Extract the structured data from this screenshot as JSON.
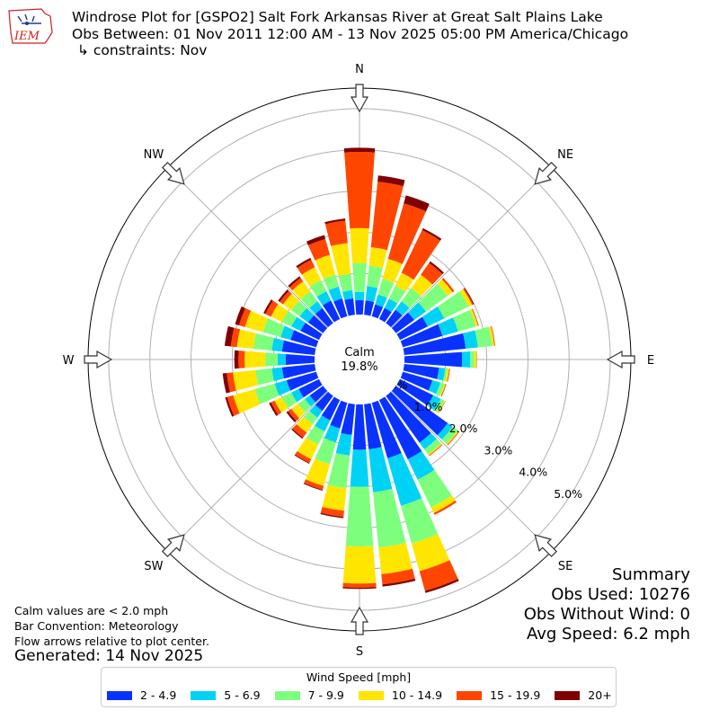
{
  "header": {
    "logo_text": "IEM",
    "title_line1": "Windrose Plot for [GSPO2] Salt Fork Arkansas River at Great Salt Plains Lake",
    "title_line2": "Obs Between: 01 Nov 2011 12:00 AM - 13 Nov 2025 05:00 PM America/Chicago",
    "title_line3": "↳ constraints: Nov"
  },
  "chart_data": {
    "type": "windrose",
    "direction_labels": [
      "N",
      "NE",
      "E",
      "SE",
      "S",
      "SW",
      "W",
      "NW"
    ],
    "calm_label": "Calm",
    "calm_value": "19.8%",
    "radial_ticks": [
      "0.0%",
      "1.0%",
      "2.0%",
      "3.0%",
      "4.0%",
      "5.0%"
    ],
    "radial_max_percent": 5.5,
    "directions_deg": [
      0,
      10,
      20,
      30,
      40,
      50,
      60,
      70,
      80,
      90,
      100,
      110,
      120,
      130,
      140,
      150,
      160,
      170,
      180,
      190,
      200,
      210,
      220,
      230,
      240,
      250,
      260,
      270,
      280,
      290,
      300,
      310,
      320,
      330,
      340,
      350
    ],
    "cumulative_percent": [
      [
        0.35,
        0.55,
        1.25,
        2.1,
        3.95,
        4.05
      ],
      [
        0.35,
        0.7,
        1.2,
        1.65,
        3.25,
        3.4
      ],
      [
        0.3,
        0.55,
        0.95,
        1.45,
        2.85,
        3.05
      ],
      [
        0.3,
        0.55,
        0.9,
        1.25,
        2.4,
        2.45
      ],
      [
        0.4,
        0.65,
        1.05,
        1.45,
        1.8,
        1.85
      ],
      [
        0.55,
        0.9,
        1.55,
        1.7,
        1.75,
        1.75
      ],
      [
        0.75,
        1.2,
        1.85,
        1.95,
        1.98,
        2.0
      ],
      [
        1.0,
        1.4,
        1.85,
        1.9,
        1.92,
        1.92
      ],
      [
        1.5,
        1.8,
        2.15,
        2.2,
        2.22,
        2.22
      ],
      [
        1.4,
        1.6,
        1.7,
        1.75,
        1.76,
        1.76
      ],
      [
        0.85,
        1.0,
        1.05,
        1.1,
        1.12,
        1.12
      ],
      [
        0.75,
        0.95,
        1.05,
        1.08,
        1.1,
        1.1
      ],
      [
        0.9,
        1.1,
        1.2,
        1.22,
        1.23,
        1.23
      ],
      [
        1.55,
        1.7,
        1.85,
        1.88,
        1.9,
        1.9
      ],
      [
        1.4,
        1.6,
        1.75,
        1.78,
        1.8,
        1.8
      ],
      [
        1.6,
        2.15,
        2.9,
        3.05,
        3.1,
        3.1
      ],
      [
        1.4,
        2.6,
        3.55,
        4.25,
        4.75,
        4.8
      ],
      [
        1.1,
        2.15,
        3.5,
        4.15,
        4.4,
        4.45
      ],
      [
        1.1,
        2.0,
        3.45,
        4.35,
        4.45,
        4.48
      ],
      [
        0.75,
        1.25,
        2.05,
        2.6,
        2.75,
        2.78
      ],
      [
        0.65,
        1.0,
        1.55,
        2.1,
        2.2,
        2.22
      ],
      [
        0.55,
        0.85,
        1.2,
        1.6,
        1.7,
        1.72
      ],
      [
        0.45,
        0.65,
        0.85,
        1.1,
        1.25,
        1.28
      ],
      [
        0.4,
        0.55,
        0.75,
        0.95,
        1.05,
        1.1
      ],
      [
        0.55,
        0.75,
        1.0,
        1.2,
        1.3,
        1.35
      ],
      [
        0.75,
        1.05,
        1.55,
        2.1,
        2.25,
        2.3
      ],
      [
        0.8,
        1.05,
        1.45,
        2.0,
        2.15,
        2.25
      ],
      [
        0.7,
        0.9,
        1.2,
        1.7,
        1.85,
        1.95
      ],
      [
        0.8,
        1.05,
        1.5,
        1.9,
        2.05,
        2.2
      ],
      [
        0.65,
        0.9,
        1.35,
        1.8,
        1.95,
        2.05
      ],
      [
        0.5,
        0.75,
        1.0,
        1.3,
        1.45,
        1.5
      ],
      [
        0.45,
        0.7,
        0.95,
        1.2,
        1.3,
        1.35
      ],
      [
        0.45,
        0.65,
        0.95,
        1.25,
        1.35,
        1.4
      ],
      [
        0.5,
        0.75,
        1.05,
        1.4,
        1.6,
        1.65
      ],
      [
        0.45,
        0.75,
        1.05,
        1.55,
        1.95,
        2.05
      ],
      [
        0.4,
        0.6,
        1.0,
        1.75,
        2.3,
        2.35
      ]
    ],
    "legend": {
      "title": "Wind Speed [mph]",
      "bins": [
        {
          "label": "2 - 4.9",
          "color": "#0a32ff"
        },
        {
          "label": "5 - 6.9",
          "color": "#00d2f5"
        },
        {
          "label": "7 - 9.9",
          "color": "#7dff7d"
        },
        {
          "label": "10 - 14.9",
          "color": "#ffe600"
        },
        {
          "label": "15 - 19.9",
          "color": "#ff4600"
        },
        {
          "label": "20+",
          "color": "#800000"
        }
      ]
    }
  },
  "notes": {
    "line1": "Calm values are < 2.0 mph",
    "line2": "Bar Convention: Meteorology",
    "line3": "Flow arrows relative to plot center.",
    "generated": "Generated: 14 Nov 2025"
  },
  "summary": {
    "title": "Summary",
    "obs_used": "Obs Used: 10276",
    "obs_without_wind": "Obs Without Wind: 0",
    "avg_speed": "Avg Speed: 6.2 mph"
  }
}
